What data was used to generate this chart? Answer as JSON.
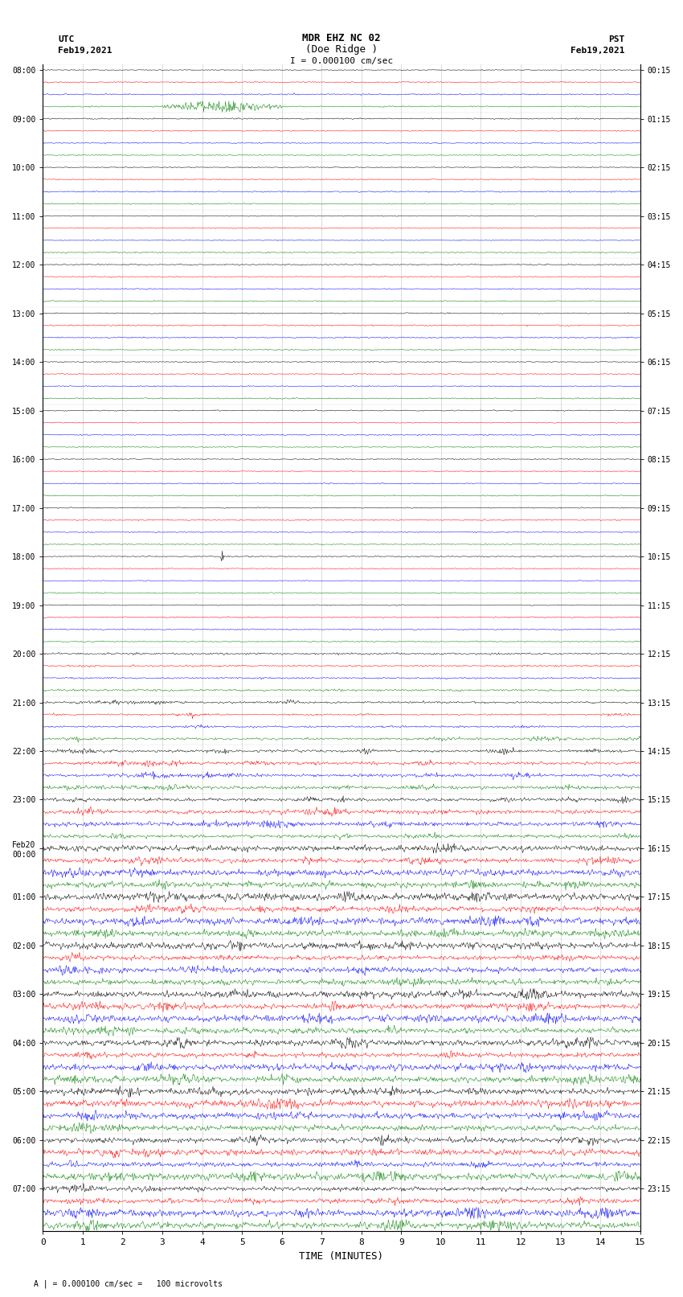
{
  "title_line1": "MDR EHZ NC 02",
  "title_line2": "(Doe Ridge )",
  "scale_label": "I = 0.000100 cm/sec",
  "left_label_top": "UTC",
  "left_label_date": "Feb19,2021",
  "right_label_top": "PST",
  "right_label_date": "Feb19,2021",
  "footnote": "A | = 0.000100 cm/sec =   100 microvolts",
  "utc_times": [
    "08:00",
    "",
    "",
    "",
    "09:00",
    "",
    "",
    "",
    "10:00",
    "",
    "",
    "",
    "11:00",
    "",
    "",
    "",
    "12:00",
    "",
    "",
    "",
    "13:00",
    "",
    "",
    "",
    "14:00",
    "",
    "",
    "",
    "15:00",
    "",
    "",
    "",
    "16:00",
    "",
    "",
    "",
    "17:00",
    "",
    "",
    "",
    "18:00",
    "",
    "",
    "",
    "19:00",
    "",
    "",
    "",
    "20:00",
    "",
    "",
    "",
    "21:00",
    "",
    "",
    "",
    "22:00",
    "",
    "",
    "",
    "23:00",
    "",
    "",
    "",
    "Feb20\n00:00",
    "",
    "",
    "",
    "01:00",
    "",
    "",
    "",
    "02:00",
    "",
    "",
    "",
    "03:00",
    "",
    "",
    "",
    "04:00",
    "",
    "",
    "",
    "05:00",
    "",
    "",
    "",
    "06:00",
    "",
    "",
    "",
    "07:00",
    "",
    "",
    ""
  ],
  "pst_times": [
    "00:15",
    "",
    "",
    "",
    "01:15",
    "",
    "",
    "",
    "02:15",
    "",
    "",
    "",
    "03:15",
    "",
    "",
    "",
    "04:15",
    "",
    "",
    "",
    "05:15",
    "",
    "",
    "",
    "06:15",
    "",
    "",
    "",
    "07:15",
    "",
    "",
    "",
    "08:15",
    "",
    "",
    "",
    "09:15",
    "",
    "",
    "",
    "10:15",
    "",
    "",
    "",
    "11:15",
    "",
    "",
    "",
    "12:15",
    "",
    "",
    "",
    "13:15",
    "",
    "",
    "",
    "14:15",
    "",
    "",
    "",
    "15:15",
    "",
    "",
    "",
    "16:15",
    "",
    "",
    "",
    "17:15",
    "",
    "",
    "",
    "18:15",
    "",
    "",
    "",
    "19:15",
    "",
    "",
    "",
    "20:15",
    "",
    "",
    "",
    "21:15",
    "",
    "",
    "",
    "22:15",
    "",
    "",
    "",
    "23:15",
    "",
    "",
    ""
  ],
  "n_rows": 96,
  "colors": [
    "black",
    "red",
    "blue",
    "green"
  ],
  "x_ticks": [
    0,
    1,
    2,
    3,
    4,
    5,
    6,
    7,
    8,
    9,
    10,
    11,
    12,
    13,
    14,
    15
  ],
  "x_label": "TIME (MINUTES)",
  "fig_width": 8.5,
  "fig_height": 16.13,
  "bg_color": "white"
}
